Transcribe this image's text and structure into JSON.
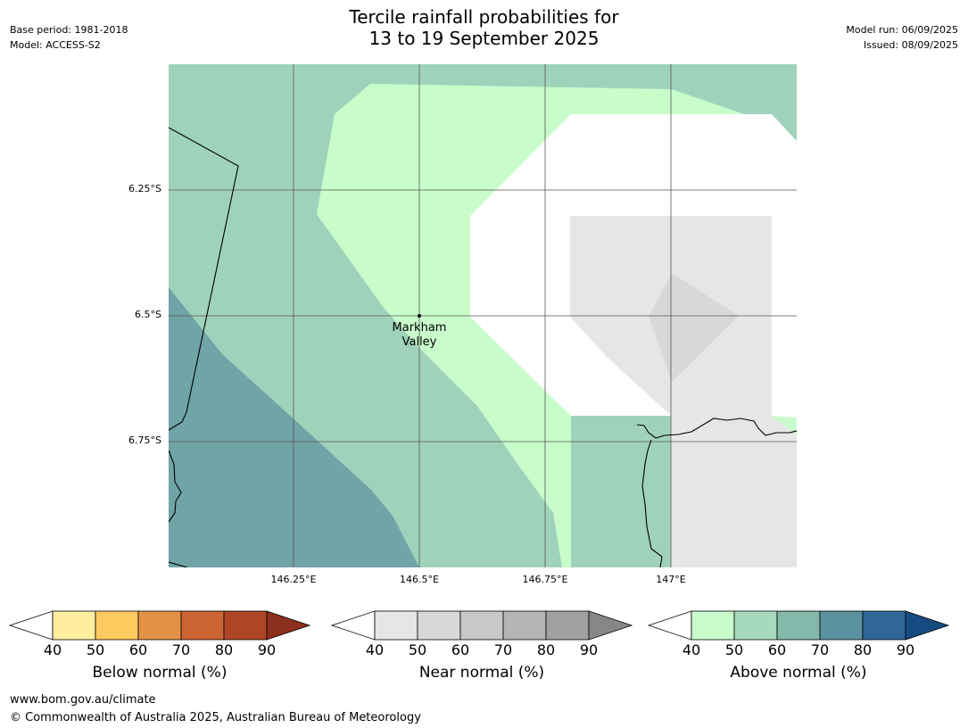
{
  "header": {
    "title_line1": "Tercile rainfall probabilities for",
    "title_line2": "13 to 19 September 2025",
    "base_period": "Base period: 1981-2018",
    "model": "Model: ACCESS-S2",
    "model_run": "Model run: 06/09/2025",
    "issued": "Issued: 08/09/2025"
  },
  "map": {
    "lat_labels": [
      "6.25°S",
      "6.5°S",
      "6.75°S"
    ],
    "lon_labels": [
      "146.25°E",
      "146.5°E",
      "146.75°E",
      "147°E"
    ],
    "town": {
      "line1": "Markham",
      "line2": "Valley"
    }
  },
  "colorbars": [
    {
      "label": "Below normal (%)",
      "ticks": [
        "40",
        "50",
        "60",
        "70",
        "80",
        "90"
      ],
      "colors": [
        "#ffeda0",
        "#fec95f",
        "#e29245",
        "#cc6533",
        "#ae4525",
        "#8c2f1e"
      ]
    },
    {
      "label": "Near normal (%)",
      "ticks": [
        "40",
        "50",
        "60",
        "70",
        "80",
        "90"
      ],
      "colors": [
        "#e6e6e6",
        "#d8d8d8",
        "#c8c8c8",
        "#b5b5b5",
        "#a1a1a1",
        "#878787"
      ]
    },
    {
      "label": "Above normal (%)",
      "ticks": [
        "40",
        "50",
        "60",
        "70",
        "80",
        "90"
      ],
      "colors": [
        "#c9fccb",
        "#a7d9bc",
        "#84b8ab",
        "#5a929f",
        "#306699",
        "#164b82"
      ]
    }
  ],
  "footer": {
    "url": "www.bom.gov.au/climate",
    "copyright": "© Commonwealth of Australia 2025, Australian Bureau of Meteorology"
  }
}
